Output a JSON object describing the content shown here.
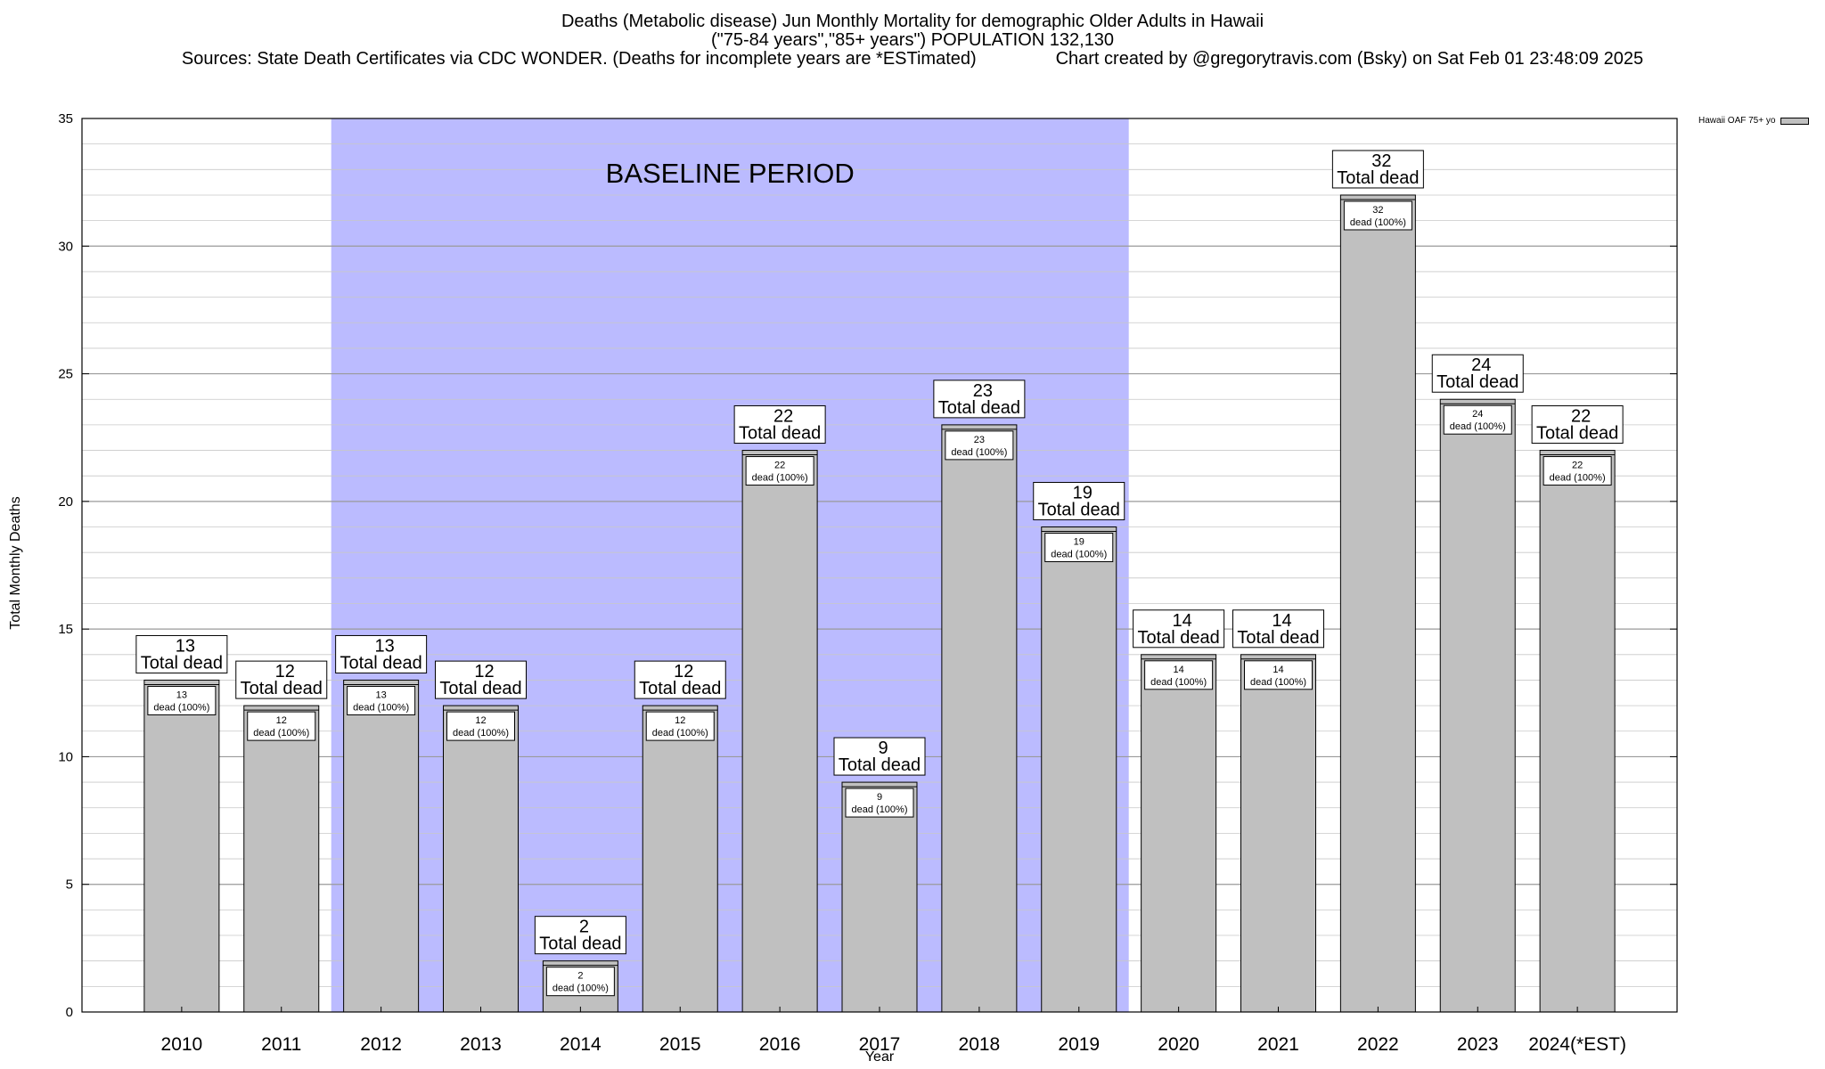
{
  "chart": {
    "title_line1": "Deaths (Metabolic disease) Jun Monthly Mortality for demographic Older Adults in Hawaii",
    "title_line2": "(\"75-84 years\",\"85+ years\") POPULATION 132,130",
    "title_line3": "Sources: State Death Certificates via CDC WONDER. (Deaths for incomplete years are *ESTimated)                Chart created by @gregorytravis.com (Bsky) on Sat Feb 01 23:48:09 2025"
  },
  "chart_data": {
    "type": "bar",
    "xlabel": "Year",
    "ylabel": "Total Monthly Deaths",
    "ylim": [
      0,
      35
    ],
    "y_ticks": [
      0,
      5,
      10,
      15,
      20,
      25,
      30,
      35
    ],
    "grid": true,
    "legend_position": "top-right",
    "categories": [
      "2010",
      "2011",
      "2012",
      "2013",
      "2014",
      "2015",
      "2016",
      "2017",
      "2018",
      "2019",
      "2020",
      "2021",
      "2022",
      "2023",
      "2024(*EST)"
    ],
    "series": [
      {
        "name": "Hawaii OAF 75+ yo",
        "values": [
          13,
          12,
          13,
          12,
          2,
          12,
          22,
          9,
          23,
          19,
          14,
          14,
          32,
          24,
          22
        ],
        "color": "#c0c0c0"
      }
    ],
    "total_label": "Total dead",
    "inner_label": "dead (100%)",
    "baseline": {
      "label": "BASELINE PERIOD",
      "start": "2012",
      "end": "2019",
      "color": "#bbbbff"
    }
  }
}
